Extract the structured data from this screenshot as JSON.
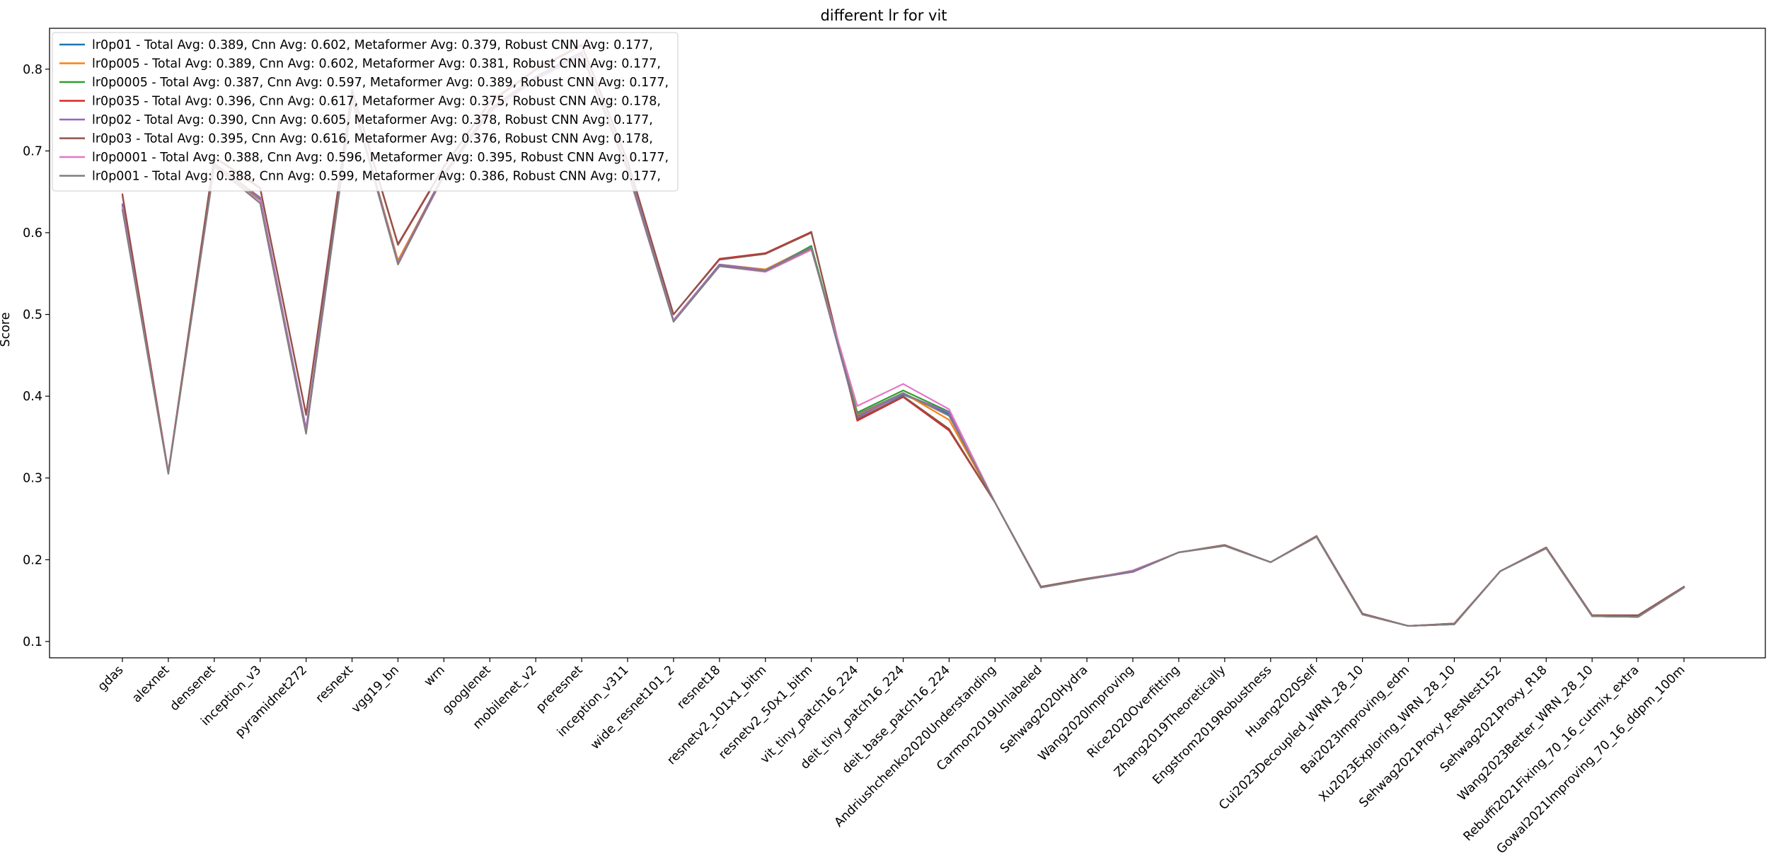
{
  "chart_data": {
    "type": "line",
    "title": "different lr for vit",
    "xlabel": "",
    "ylabel": "Score",
    "ylim": [
      0.08,
      0.85
    ],
    "yticks": [
      0.1,
      0.2,
      0.3,
      0.4,
      0.5,
      0.6,
      0.7,
      0.8
    ],
    "grid": false,
    "legend_position": "top-left",
    "categories": [
      "gdas",
      "alexnet",
      "densenet",
      "inception_v3",
      "pyramidnet272",
      "resnext",
      "vgg19_bn",
      "wrn",
      "googlenet",
      "mobilenet_v2",
      "preresnet",
      "inception_v311",
      "wide_resnet101_2",
      "resnet18",
      "resnetv2_101x1_bitm",
      "resnetv2_50x1_bitm",
      "vit_tiny_patch16_224",
      "deit_tiny_patch16_224",
      "deit_base_patch16_224",
      "Andriushchenko2020Understanding",
      "Carmon2019Unlabeled",
      "Sehwag2020Hydra",
      "Wang2020Improving",
      "Rice2020Overfitting",
      "Zhang2019Theoretically",
      "Engstrom2019Robustness",
      "Huang2020Self",
      "Cui2023Decoupled_WRN_28_10",
      "Bai2023Improving_edm",
      "Xu2023Exploring_WRN_28_10",
      "Sehwag2021Proxy_ResNest152",
      "Sehwag2021Proxy_R18",
      "Wang2023Better_WRN_28_10",
      "Rebuffi2021Fixing_70_16_cutmix_extra",
      "Gowal2021Improving_70_16_ddpm_100m"
    ],
    "series": [
      {
        "name": "lr0p01 - Total Avg: 0.389, Cnn Avg: 0.602, Metaformer Avg: 0.379, Robust CNN Avg: 0.177,",
        "color": "#1f77b4",
        "values": [
          0.632,
          0.307,
          0.683,
          0.641,
          0.358,
          0.765,
          0.565,
          0.672,
          0.75,
          0.79,
          0.82,
          0.678,
          0.492,
          0.561,
          0.555,
          0.583,
          0.375,
          0.402,
          0.378,
          0.27,
          0.166,
          0.176,
          0.185,
          0.209,
          0.217,
          0.197,
          0.228,
          0.133,
          0.119,
          0.121,
          0.186,
          0.214,
          0.131,
          0.13,
          0.166
        ]
      },
      {
        "name": "lr0p005 - Total Avg: 0.389, Cnn Avg: 0.602, Metaformer Avg: 0.381, Robust CNN Avg: 0.177,",
        "color": "#ff7f0e",
        "values": [
          0.634,
          0.307,
          0.682,
          0.642,
          0.359,
          0.765,
          0.566,
          0.672,
          0.752,
          0.791,
          0.82,
          0.679,
          0.492,
          0.561,
          0.555,
          0.583,
          0.377,
          0.404,
          0.371,
          0.27,
          0.166,
          0.176,
          0.186,
          0.209,
          0.217,
          0.197,
          0.228,
          0.133,
          0.119,
          0.121,
          0.186,
          0.214,
          0.131,
          0.13,
          0.166
        ]
      },
      {
        "name": "lr0p0005 - Total Avg: 0.387, Cnn Avg: 0.597, Metaformer Avg: 0.389, Robust CNN Avg: 0.177,",
        "color": "#2ca02c",
        "values": [
          0.633,
          0.306,
          0.681,
          0.64,
          0.357,
          0.762,
          0.563,
          0.67,
          0.748,
          0.788,
          0.818,
          0.676,
          0.492,
          0.56,
          0.553,
          0.584,
          0.38,
          0.407,
          0.381,
          0.27,
          0.166,
          0.176,
          0.186,
          0.209,
          0.217,
          0.197,
          0.228,
          0.133,
          0.119,
          0.121,
          0.186,
          0.214,
          0.131,
          0.13,
          0.166
        ]
      },
      {
        "name": "lr0p035 - Total Avg: 0.396, Cnn Avg: 0.617, Metaformer Avg: 0.375, Robust CNN Avg: 0.178,",
        "color": "#d62728",
        "values": [
          0.647,
          0.307,
          0.693,
          0.655,
          0.378,
          0.775,
          0.586,
          0.681,
          0.76,
          0.8,
          0.83,
          0.688,
          0.5,
          0.568,
          0.575,
          0.601,
          0.37,
          0.399,
          0.358,
          0.27,
          0.167,
          0.177,
          0.186,
          0.209,
          0.218,
          0.197,
          0.229,
          0.134,
          0.119,
          0.122,
          0.186,
          0.215,
          0.132,
          0.132,
          0.167
        ]
      },
      {
        "name": "lr0p02 - Total Avg: 0.390, Cnn Avg: 0.605, Metaformer Avg: 0.378, Robust CNN Avg: 0.177,",
        "color": "#9467bd",
        "values": [
          0.635,
          0.307,
          0.685,
          0.643,
          0.36,
          0.766,
          0.563,
          0.673,
          0.751,
          0.791,
          0.821,
          0.68,
          0.493,
          0.561,
          0.554,
          0.582,
          0.374,
          0.403,
          0.38,
          0.27,
          0.166,
          0.176,
          0.185,
          0.209,
          0.217,
          0.197,
          0.228,
          0.133,
          0.119,
          0.121,
          0.186,
          0.214,
          0.131,
          0.13,
          0.166
        ]
      },
      {
        "name": "lr0p03 - Total Avg: 0.395, Cnn Avg: 0.616, Metaformer Avg: 0.376, Robust CNN Avg: 0.178,",
        "color": "#8c564b",
        "values": [
          0.646,
          0.306,
          0.692,
          0.654,
          0.377,
          0.774,
          0.585,
          0.68,
          0.759,
          0.799,
          0.829,
          0.687,
          0.5,
          0.567,
          0.574,
          0.6,
          0.372,
          0.4,
          0.36,
          0.27,
          0.167,
          0.177,
          0.186,
          0.209,
          0.218,
          0.197,
          0.229,
          0.134,
          0.119,
          0.122,
          0.186,
          0.215,
          0.132,
          0.132,
          0.167
        ]
      },
      {
        "name": "lr0p0001 - Total Avg: 0.388, Cnn Avg: 0.596, Metaformer Avg: 0.395, Robust CNN Avg: 0.177,",
        "color": "#e377c2",
        "values": [
          0.631,
          0.306,
          0.68,
          0.639,
          0.356,
          0.761,
          0.562,
          0.669,
          0.747,
          0.787,
          0.817,
          0.675,
          0.492,
          0.559,
          0.552,
          0.579,
          0.388,
          0.415,
          0.384,
          0.27,
          0.166,
          0.176,
          0.187,
          0.209,
          0.217,
          0.197,
          0.228,
          0.133,
          0.119,
          0.121,
          0.186,
          0.214,
          0.131,
          0.13,
          0.166
        ]
      },
      {
        "name": "lr0p001 - Total Avg: 0.388, Cnn Avg: 0.599, Metaformer Avg: 0.386, Robust CNN Avg: 0.177,",
        "color": "#7f7f7f",
        "values": [
          0.628,
          0.305,
          0.682,
          0.636,
          0.354,
          0.763,
          0.561,
          0.671,
          0.749,
          0.789,
          0.819,
          0.677,
          0.491,
          0.559,
          0.553,
          0.581,
          0.378,
          0.404,
          0.376,
          0.27,
          0.166,
          0.176,
          0.186,
          0.209,
          0.217,
          0.197,
          0.228,
          0.133,
          0.119,
          0.121,
          0.186,
          0.214,
          0.131,
          0.13,
          0.166
        ]
      }
    ]
  }
}
